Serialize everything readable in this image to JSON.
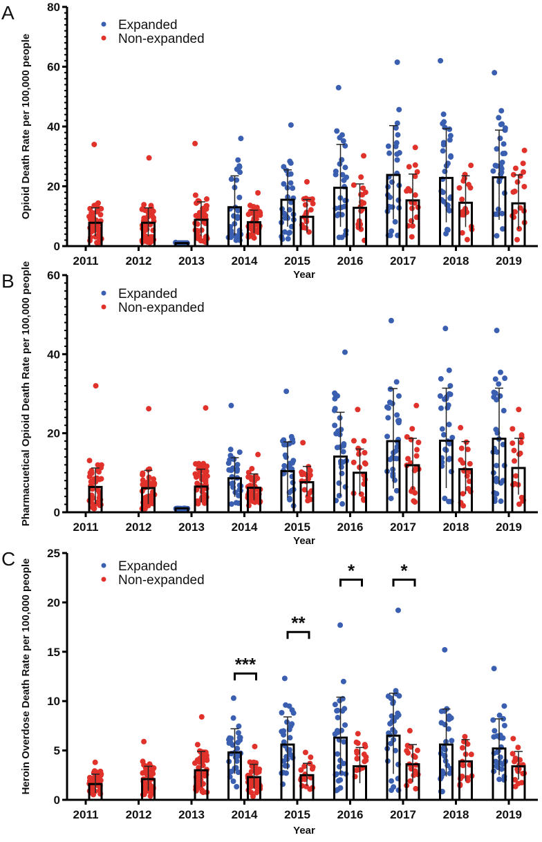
{
  "chart_data": [
    {
      "type": "bar",
      "panel": "A",
      "title": "",
      "xlabel": "Year",
      "ylabel": "Opioid Death Rate per 100,000 people",
      "ylim": [
        0,
        80
      ],
      "yticks": [
        0,
        20,
        40,
        60,
        80
      ],
      "categories": [
        "2011",
        "2012",
        "2013",
        "2014",
        "2015",
        "2016",
        "2017",
        "2018",
        "2019"
      ],
      "legend": {
        "position": "top-left",
        "entries": [
          "Expanded",
          "Non-expanded"
        ]
      },
      "series": [
        {
          "name": "Expanded",
          "color": "#3a5fb0",
          "values": [
            null,
            null,
            1.0,
            13.0,
            15.5,
            19.5,
            23.8,
            22.8,
            23.0
          ],
          "error_sd": [
            null,
            null,
            0,
            10.5,
            10.0,
            14.5,
            16.5,
            16.5,
            15.8
          ],
          "points_max": [
            null,
            null,
            1.2,
            36,
            40.5,
            53,
            61.5,
            62,
            58
          ]
        },
        {
          "name": "Non-expanded",
          "color": "#e0312a",
          "values": [
            7.8,
            7.8,
            8.8,
            8.0,
            9.8,
            12.8,
            15.3,
            14.5,
            14.3
          ],
          "error_sd": [
            5.0,
            5.0,
            6.0,
            4.0,
            5.8,
            8.0,
            8.8,
            9.0,
            9.5
          ],
          "points_max": [
            34,
            29.5,
            34.3,
            17.8,
            21.5,
            30.2,
            33,
            27,
            32
          ]
        }
      ],
      "significance": []
    },
    {
      "type": "bar",
      "panel": "B",
      "title": "",
      "xlabel": "Year",
      "ylabel": "Pharmacuetical Opioid Death Rate per 100,000 people",
      "ylim": [
        0,
        60
      ],
      "yticks": [
        0,
        20,
        40,
        60
      ],
      "categories": [
        "2011",
        "2012",
        "2013",
        "2014",
        "2015",
        "2016",
        "2017",
        "2018",
        "2019"
      ],
      "legend": {
        "position": "top-left",
        "entries": [
          "Expanded",
          "Non-expanded"
        ]
      },
      "series": [
        {
          "name": "Expanded",
          "color": "#3a5fb0",
          "values": [
            null,
            null,
            1.0,
            8.6,
            10.4,
            14.1,
            18.0,
            18.1,
            18.6
          ],
          "error_sd": [
            null,
            null,
            0,
            5.2,
            7.4,
            11.2,
            13.3,
            13.3,
            12.8
          ],
          "points_max": [
            null,
            null,
            1.0,
            27,
            30.6,
            40.5,
            48.5,
            46.5,
            46
          ]
        },
        {
          "name": "Non-expanded",
          "color": "#e0312a",
          "values": [
            6.4,
            6.1,
            6.5,
            6.2,
            7.6,
            10.0,
            11.9,
            10.9,
            11.2
          ],
          "error_sd": [
            4.8,
            4.5,
            4.4,
            3.5,
            4.0,
            6.0,
            6.8,
            7.0,
            7.5
          ],
          "points_max": [
            32,
            26.2,
            26.4,
            14.6,
            17.6,
            26,
            27,
            21.4,
            26
          ]
        }
      ],
      "significance": []
    },
    {
      "type": "bar",
      "panel": "C",
      "title": "",
      "xlabel": "Year",
      "ylabel": "Heroin Overdose Death Rate per 100,000 people",
      "ylim": [
        0,
        25
      ],
      "yticks": [
        0,
        5,
        10,
        15,
        20,
        25
      ],
      "categories": [
        "2011",
        "2012",
        "2013",
        "2014",
        "2015",
        "2016",
        "2017",
        "2018",
        "2019"
      ],
      "legend": {
        "position": "top-left",
        "entries": [
          "Expanded",
          "Non-expanded"
        ]
      },
      "series": [
        {
          "name": "Expanded",
          "color": "#3a5fb0",
          "values": [
            null,
            null,
            null,
            4.8,
            5.6,
            6.3,
            6.5,
            5.6,
            5.2
          ],
          "error_sd": [
            null,
            null,
            null,
            2.4,
            2.8,
            4.1,
            4.3,
            3.6,
            3.0
          ],
          "points_max": [
            null,
            null,
            null,
            10.3,
            12.3,
            17.7,
            19.2,
            15.2,
            13.3
          ]
        },
        {
          "name": "Non-expanded",
          "color": "#e0312a",
          "values": [
            1.6,
            2.1,
            3.0,
            2.3,
            2.5,
            3.4,
            3.6,
            3.9,
            3.4
          ],
          "error_sd": [
            1.0,
            1.3,
            1.9,
            1.3,
            1.2,
            1.9,
            2.0,
            2.2,
            1.5
          ],
          "points_max": [
            3.8,
            5.9,
            8.4,
            5.4,
            4.8,
            6.7,
            7.0,
            6.4,
            6.2
          ]
        }
      ],
      "significance": [
        {
          "year": "2014",
          "label": "***",
          "y": 12.8
        },
        {
          "year": "2015",
          "label": "**",
          "y": 17.0
        },
        {
          "year": "2016",
          "label": "*",
          "y": 22.3
        },
        {
          "year": "2017",
          "label": "*",
          "y": 22.3
        }
      ]
    }
  ],
  "panel_letters": [
    "A",
    "B",
    "C"
  ]
}
